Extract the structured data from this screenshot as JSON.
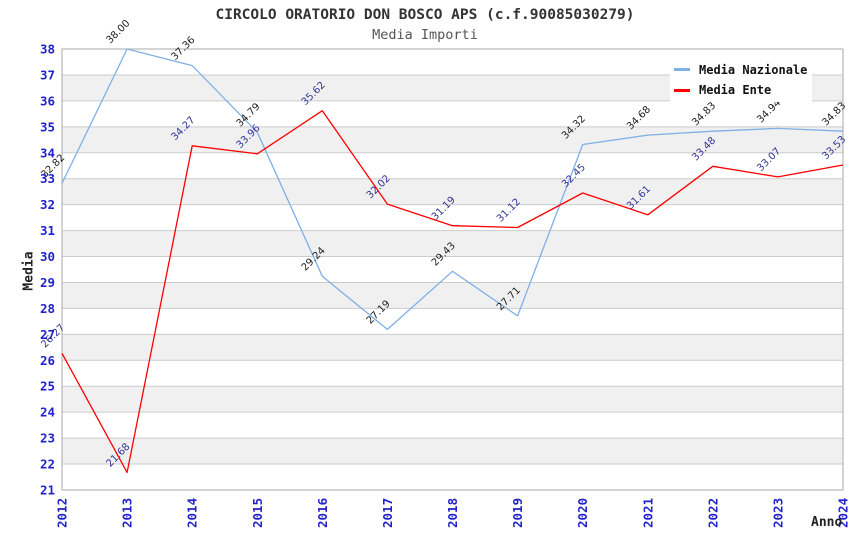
{
  "chart_data": {
    "type": "line",
    "title": "CIRCOLO ORATORIO DON BOSCO APS (c.f.90085030279)",
    "subtitle": "Media Importi",
    "xlabel": "Anno",
    "ylabel": "Media",
    "ylim": [
      21,
      38
    ],
    "y_tick_step": 1,
    "grid": true,
    "legend_position": "top-right-inside",
    "categories": [
      "2012",
      "2013",
      "2014",
      "2015",
      "2016",
      "2017",
      "2018",
      "2019",
      "2020",
      "2021",
      "2022",
      "2023",
      "2024"
    ],
    "series": [
      {
        "name": "Media Nazionale",
        "color": "#7FB0E6",
        "label_color": "#222222",
        "values": [
          32.82,
          38.0,
          37.36,
          34.79,
          29.24,
          27.19,
          29.43,
          27.71,
          34.32,
          34.68,
          34.83,
          34.94,
          34.83
        ]
      },
      {
        "name": "Media Ente",
        "color": "#FE0000",
        "label_color": "#333399",
        "values": [
          26.27,
          21.68,
          34.27,
          33.96,
          35.62,
          32.02,
          31.19,
          31.12,
          32.45,
          31.61,
          33.48,
          33.07,
          33.53
        ]
      }
    ],
    "colors": {
      "axis_tick": "#2222CC",
      "gridline": "#CCCCCC",
      "band": "#F0F0F0",
      "plot_border": "#AAAAAA",
      "title": "#333333",
      "subtitle": "#555555"
    }
  }
}
